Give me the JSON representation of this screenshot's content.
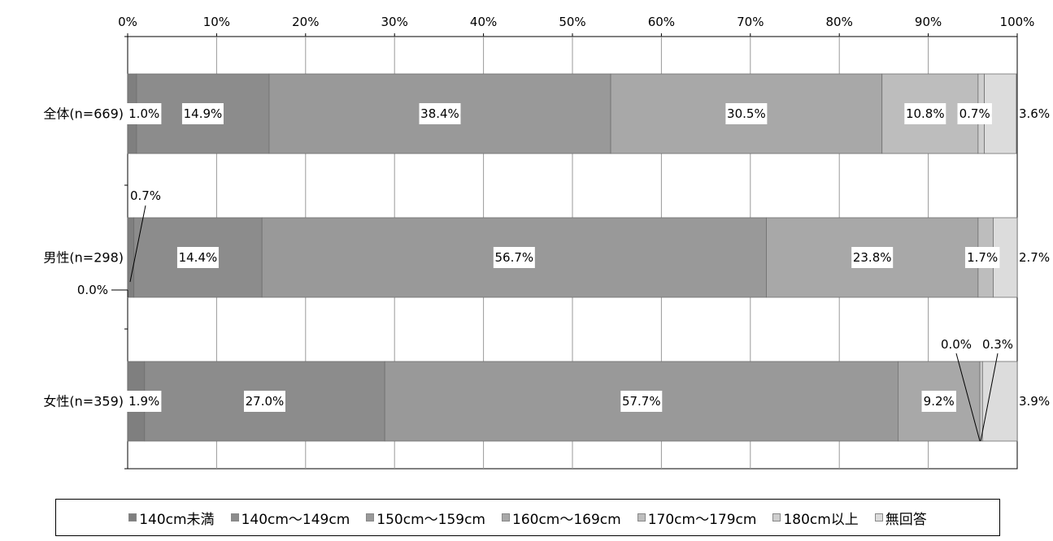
{
  "chart_data": {
    "type": "bar",
    "orientation": "horizontal",
    "stacked": true,
    "title": "",
    "xlim": [
      0,
      100
    ],
    "x_ticks": [
      "0%",
      "10%",
      "20%",
      "30%",
      "40%",
      "50%",
      "60%",
      "70%",
      "80%",
      "90%",
      "100%"
    ],
    "categories": [
      "全体(n=669)",
      "男性(n=298)",
      "女性(n=359)"
    ],
    "series": [
      {
        "name": "140cm未満",
        "color": "#7f7f7f",
        "values": [
          1.0,
          0.7,
          1.9
        ]
      },
      {
        "name": "140cm～149cm",
        "color": "#8c8c8c",
        "values": [
          14.9,
          14.4,
          27.0
        ]
      },
      {
        "name": "150cm～159cm",
        "color": "#999999",
        "values": [
          38.4,
          56.7,
          57.7
        ]
      },
      {
        "name": "160cm～169cm",
        "color": "#a8a8a8",
        "values": [
          30.5,
          23.8,
          9.2
        ]
      },
      {
        "name": "170cm～179cm",
        "color": "#bdbdbd",
        "values": [
          10.8,
          1.7,
          0.0
        ]
      },
      {
        "name": "180cm以上",
        "color": "#cecece",
        "values": [
          0.7,
          0.0,
          0.3
        ]
      },
      {
        "name": "無回答",
        "color": "#dcdcdc",
        "values": [
          3.6,
          2.7,
          3.9
        ]
      }
    ],
    "data_labels": [
      [
        "1.0%",
        "14.9%",
        "38.4%",
        "30.5%",
        "10.8%",
        "0.7%",
        "3.6%"
      ],
      [
        "0.7%",
        "14.4%",
        "56.7%",
        "23.8%",
        "1.7%",
        "0.0%",
        "2.7%"
      ],
      [
        "1.9%",
        "27.0%",
        "57.7%",
        "9.2%",
        "0.0%",
        "0.3%",
        "3.9%"
      ]
    ],
    "grid": true,
    "legend_position": "bottom"
  }
}
